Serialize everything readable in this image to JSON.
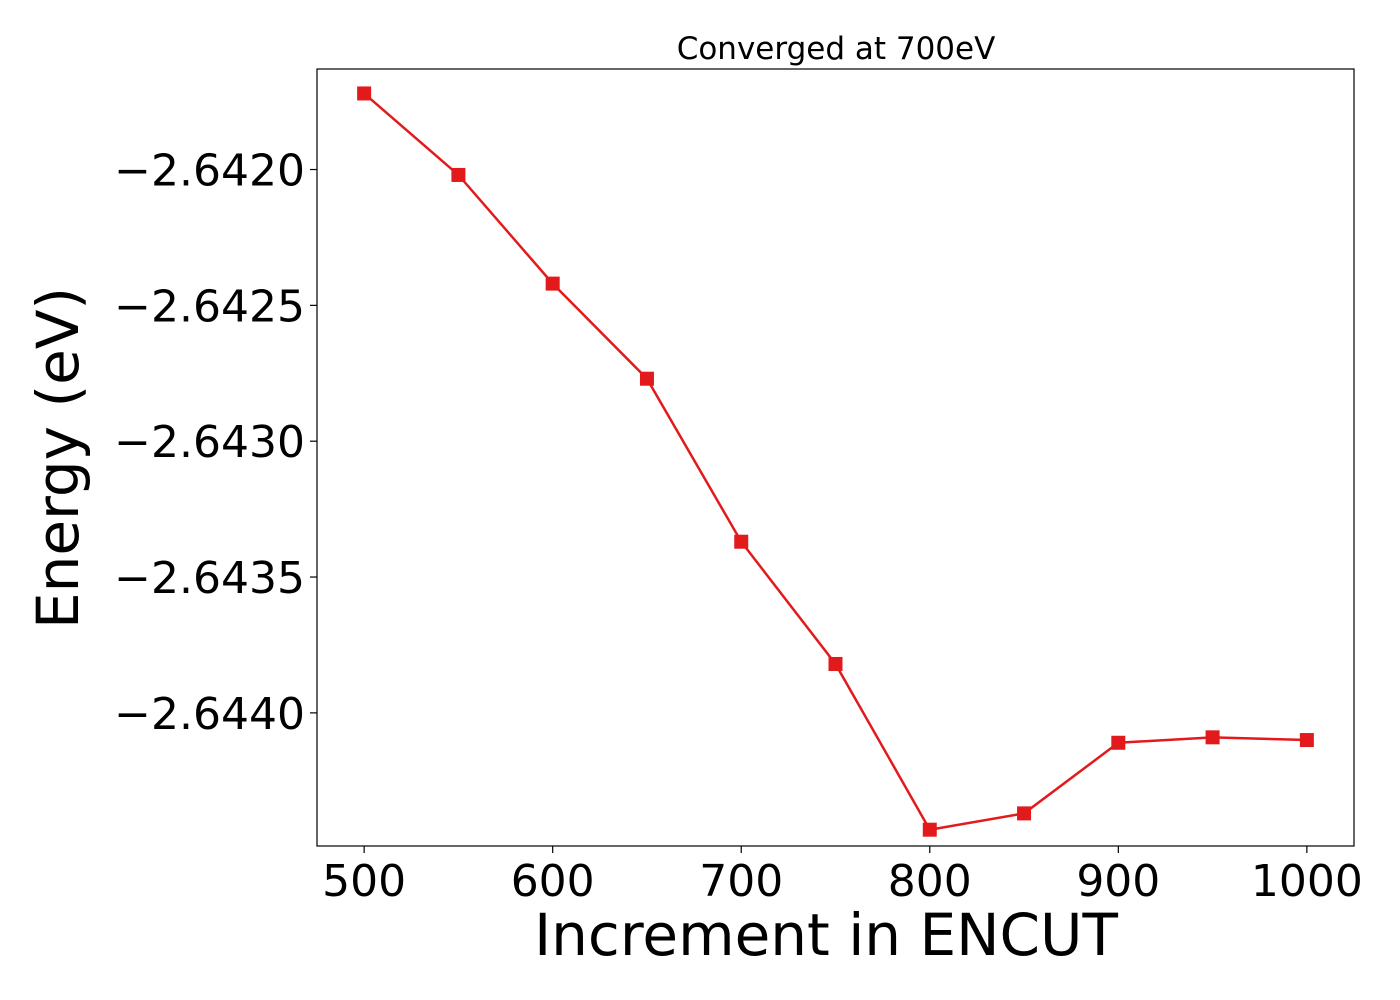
{
  "chart_data": {
    "type": "line",
    "title": "Converged at 700eV",
    "xlabel": "Increment in ENCUT",
    "ylabel": "Energy (eV)",
    "xlim": [
      475,
      1025
    ],
    "ylim": [
      -2.64449,
      -2.64163
    ],
    "xticks": [
      500,
      600,
      700,
      800,
      900,
      1000
    ],
    "yticks": [
      -2.642,
      -2.6425,
      -2.643,
      -2.6435,
      -2.644
    ],
    "ytick_labels": [
      "−2.6420",
      "−2.6425",
      "−2.6430",
      "−2.6435",
      "−2.6440"
    ],
    "grid": false,
    "series": [
      {
        "color": "#e31a1c",
        "marker": "square",
        "x": [
          500,
          550,
          600,
          650,
          700,
          750,
          800,
          850,
          900,
          950,
          1000
        ],
        "y": [
          -2.64172,
          -2.64202,
          -2.64242,
          -2.64277,
          -2.64337,
          -2.64382,
          -2.64443,
          -2.64437,
          -2.64411,
          -2.64409,
          -2.6441
        ]
      }
    ]
  }
}
